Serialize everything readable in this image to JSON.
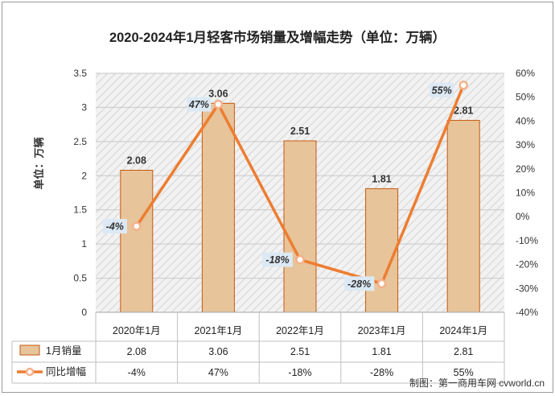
{
  "chart_data": {
    "type": "bar",
    "title": "2020-2024年1月轻客市场销量及增幅走势（单位：万辆）",
    "ylabel": "单位：万辆",
    "categories": [
      "2020年1月",
      "2021年1月",
      "2022年1月",
      "2023年1月",
      "2024年1月"
    ],
    "ylim": [
      0,
      3.5
    ],
    "y_ticks": [
      "0",
      "0.5",
      "1",
      "1.5",
      "2",
      "2.5",
      "3",
      "3.5"
    ],
    "y2lim": [
      -40,
      60
    ],
    "y2_ticks": [
      "-40%",
      "-30%",
      "-20%",
      "-10%",
      "0%",
      "10%",
      "20%",
      "30%",
      "40%",
      "50%",
      "60%"
    ],
    "series": [
      {
        "name": "1月销量",
        "type": "bar",
        "values": [
          2.08,
          3.06,
          2.51,
          1.81,
          2.81
        ],
        "labels": [
          "2.08",
          "3.06",
          "2.51",
          "1.81",
          "2.81"
        ],
        "color": "#e8c49a",
        "border_color": "#c55a11"
      },
      {
        "name": "同比增幅",
        "type": "line",
        "axis": "right",
        "values": [
          -4,
          47,
          -18,
          -28,
          55
        ],
        "labels": [
          "-4%",
          "47%",
          "-18%",
          "-28%",
          "55%"
        ],
        "color": "#ed7d31"
      }
    ],
    "grid": true,
    "legend": "data-table-below",
    "source": "制图：第一商用车网 cvworld.cn"
  }
}
